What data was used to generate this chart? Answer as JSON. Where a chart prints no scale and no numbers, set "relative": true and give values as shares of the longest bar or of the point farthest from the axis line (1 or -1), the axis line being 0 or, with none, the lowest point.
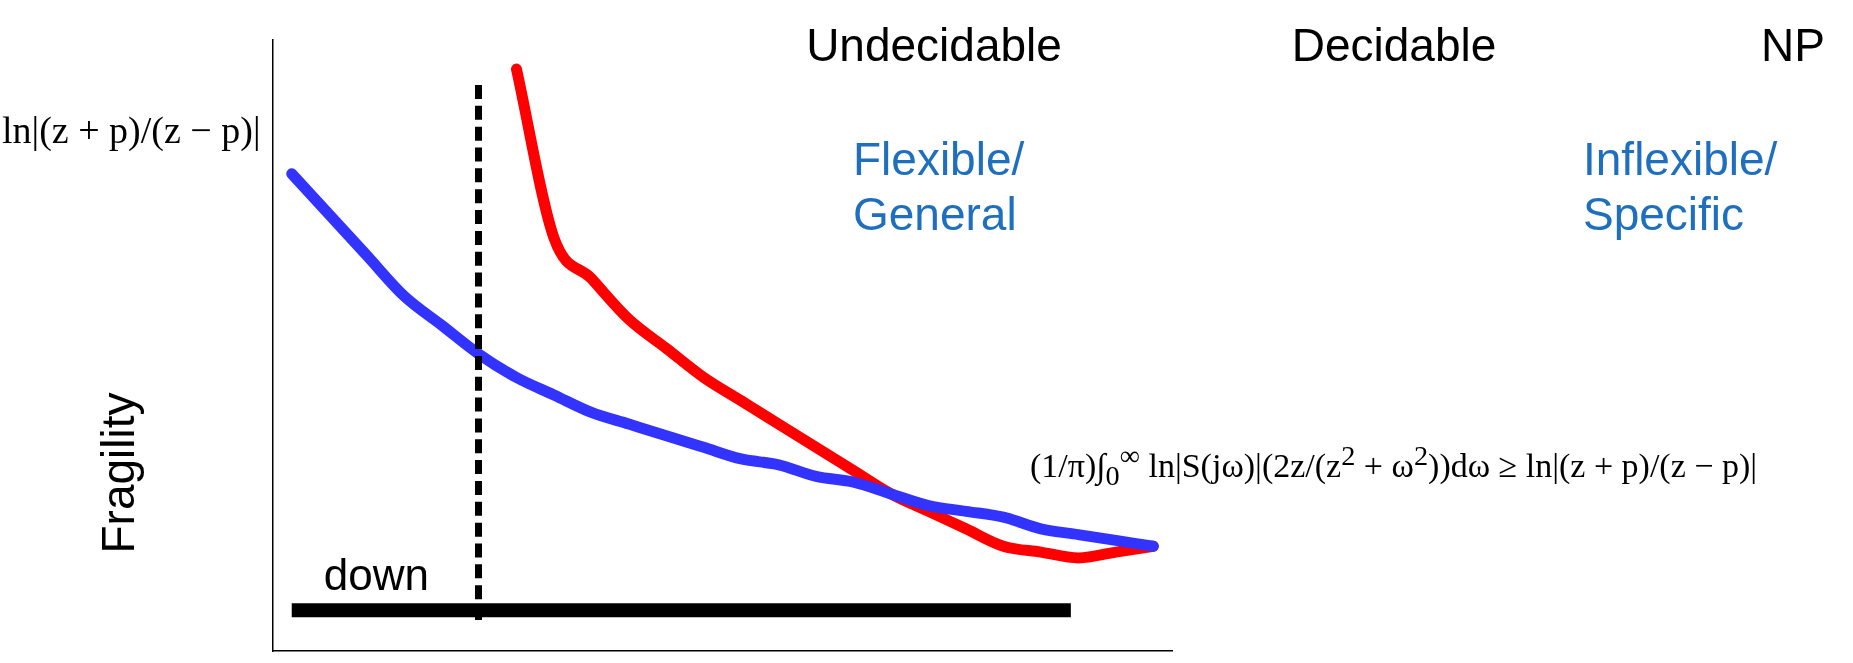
{
  "chart_data": {
    "type": "line",
    "relative": true,
    "ylabel": "Fragility",
    "tick_labels": false,
    "grid": false,
    "legend": false,
    "marker": "none",
    "line_style": "solid",
    "categories": [
      null,
      null,
      null,
      null,
      null,
      null,
      null,
      null,
      null,
      null,
      null,
      null,
      null,
      null,
      null,
      null,
      null,
      null,
      null,
      null,
      null,
      null,
      null,
      null
    ],
    "series": [
      {
        "color": "#3333ff",
        "values": [
          0.82,
          0.75,
          0.68,
          0.61,
          0.56,
          0.51,
          0.47,
          0.44,
          0.41,
          0.39,
          0.37,
          0.35,
          0.33,
          0.32,
          0.3,
          0.29,
          0.27,
          0.25,
          0.24,
          0.23,
          0.21,
          0.2,
          0.19,
          0.18
        ]
      },
      {
        "color": "#ff0000",
        "values": [
          null,
          null,
          null,
          null,
          null,
          null,
          1.0,
          0.71,
          0.64,
          0.57,
          0.52,
          0.47,
          0.43,
          0.39,
          0.35,
          0.31,
          0.27,
          0.24,
          0.21,
          0.18,
          0.17,
          0.16,
          0.17,
          0.18
        ]
      }
    ],
    "ref_lines": [
      {
        "axis": "y",
        "value": 0.07,
        "label": "down",
        "color": "#000000"
      }
    ],
    "annotations": [
      "ln|(z + p)/(z − p)|",
      "Undecidable",
      "Decidable",
      "NP",
      "Flexible/ General",
      "Inflexible/ Specific",
      "(1/π)∫$_{0}$$^{∞}$ ln|S(jω)|(2z/(z$^{2}$ + ω$^{2}$))dω ≥ ln|(z + p)/(z − p)|"
    ]
  }
}
